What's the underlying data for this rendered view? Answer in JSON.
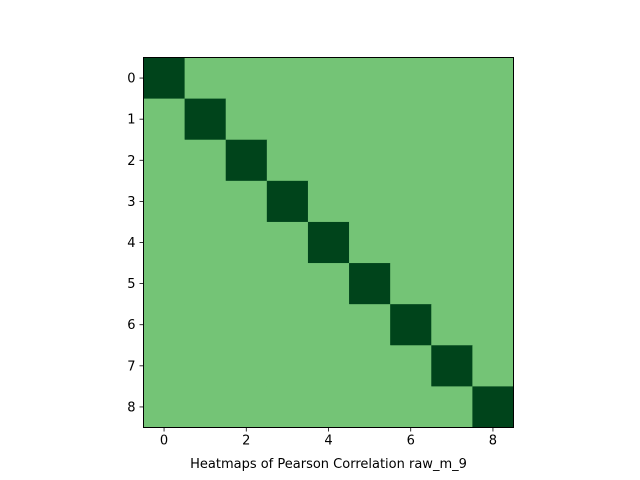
{
  "chart_data": {
    "type": "heatmap",
    "title": "",
    "xlabel": "Heatmaps of Pearson Correlation raw_m_9",
    "ylabel": "",
    "rows": [
      0,
      1,
      2,
      3,
      4,
      5,
      6,
      7,
      8
    ],
    "cols": [
      0,
      1,
      2,
      3,
      4,
      5,
      6,
      7,
      8
    ],
    "x_ticks": [
      0,
      2,
      4,
      6,
      8
    ],
    "y_ticks": [
      0,
      1,
      2,
      3,
      4,
      5,
      6,
      7,
      8
    ],
    "values": [
      [
        1.0,
        0.0,
        0.0,
        0.0,
        0.0,
        0.0,
        0.0,
        0.0,
        0.0
      ],
      [
        0.0,
        1.0,
        0.0,
        0.0,
        0.0,
        0.0,
        0.0,
        0.0,
        0.0
      ],
      [
        0.0,
        0.0,
        1.0,
        0.0,
        0.0,
        0.0,
        0.0,
        0.0,
        0.0
      ],
      [
        0.0,
        0.0,
        0.0,
        1.0,
        0.0,
        0.0,
        0.0,
        0.0,
        0.0
      ],
      [
        0.0,
        0.0,
        0.0,
        0.0,
        1.0,
        0.0,
        0.0,
        0.0,
        0.0
      ],
      [
        0.0,
        0.0,
        0.0,
        0.0,
        0.0,
        1.0,
        0.0,
        0.0,
        0.0
      ],
      [
        0.0,
        0.0,
        0.0,
        0.0,
        0.0,
        0.0,
        1.0,
        0.0,
        0.0
      ],
      [
        0.0,
        0.0,
        0.0,
        0.0,
        0.0,
        0.0,
        0.0,
        1.0,
        0.0
      ],
      [
        0.0,
        0.0,
        0.0,
        0.0,
        0.0,
        0.0,
        0.0,
        0.0,
        1.0
      ]
    ],
    "colormap": "Greens",
    "color_low": "#74c476",
    "color_high": "#00441b",
    "grid": false,
    "legend": "none"
  }
}
